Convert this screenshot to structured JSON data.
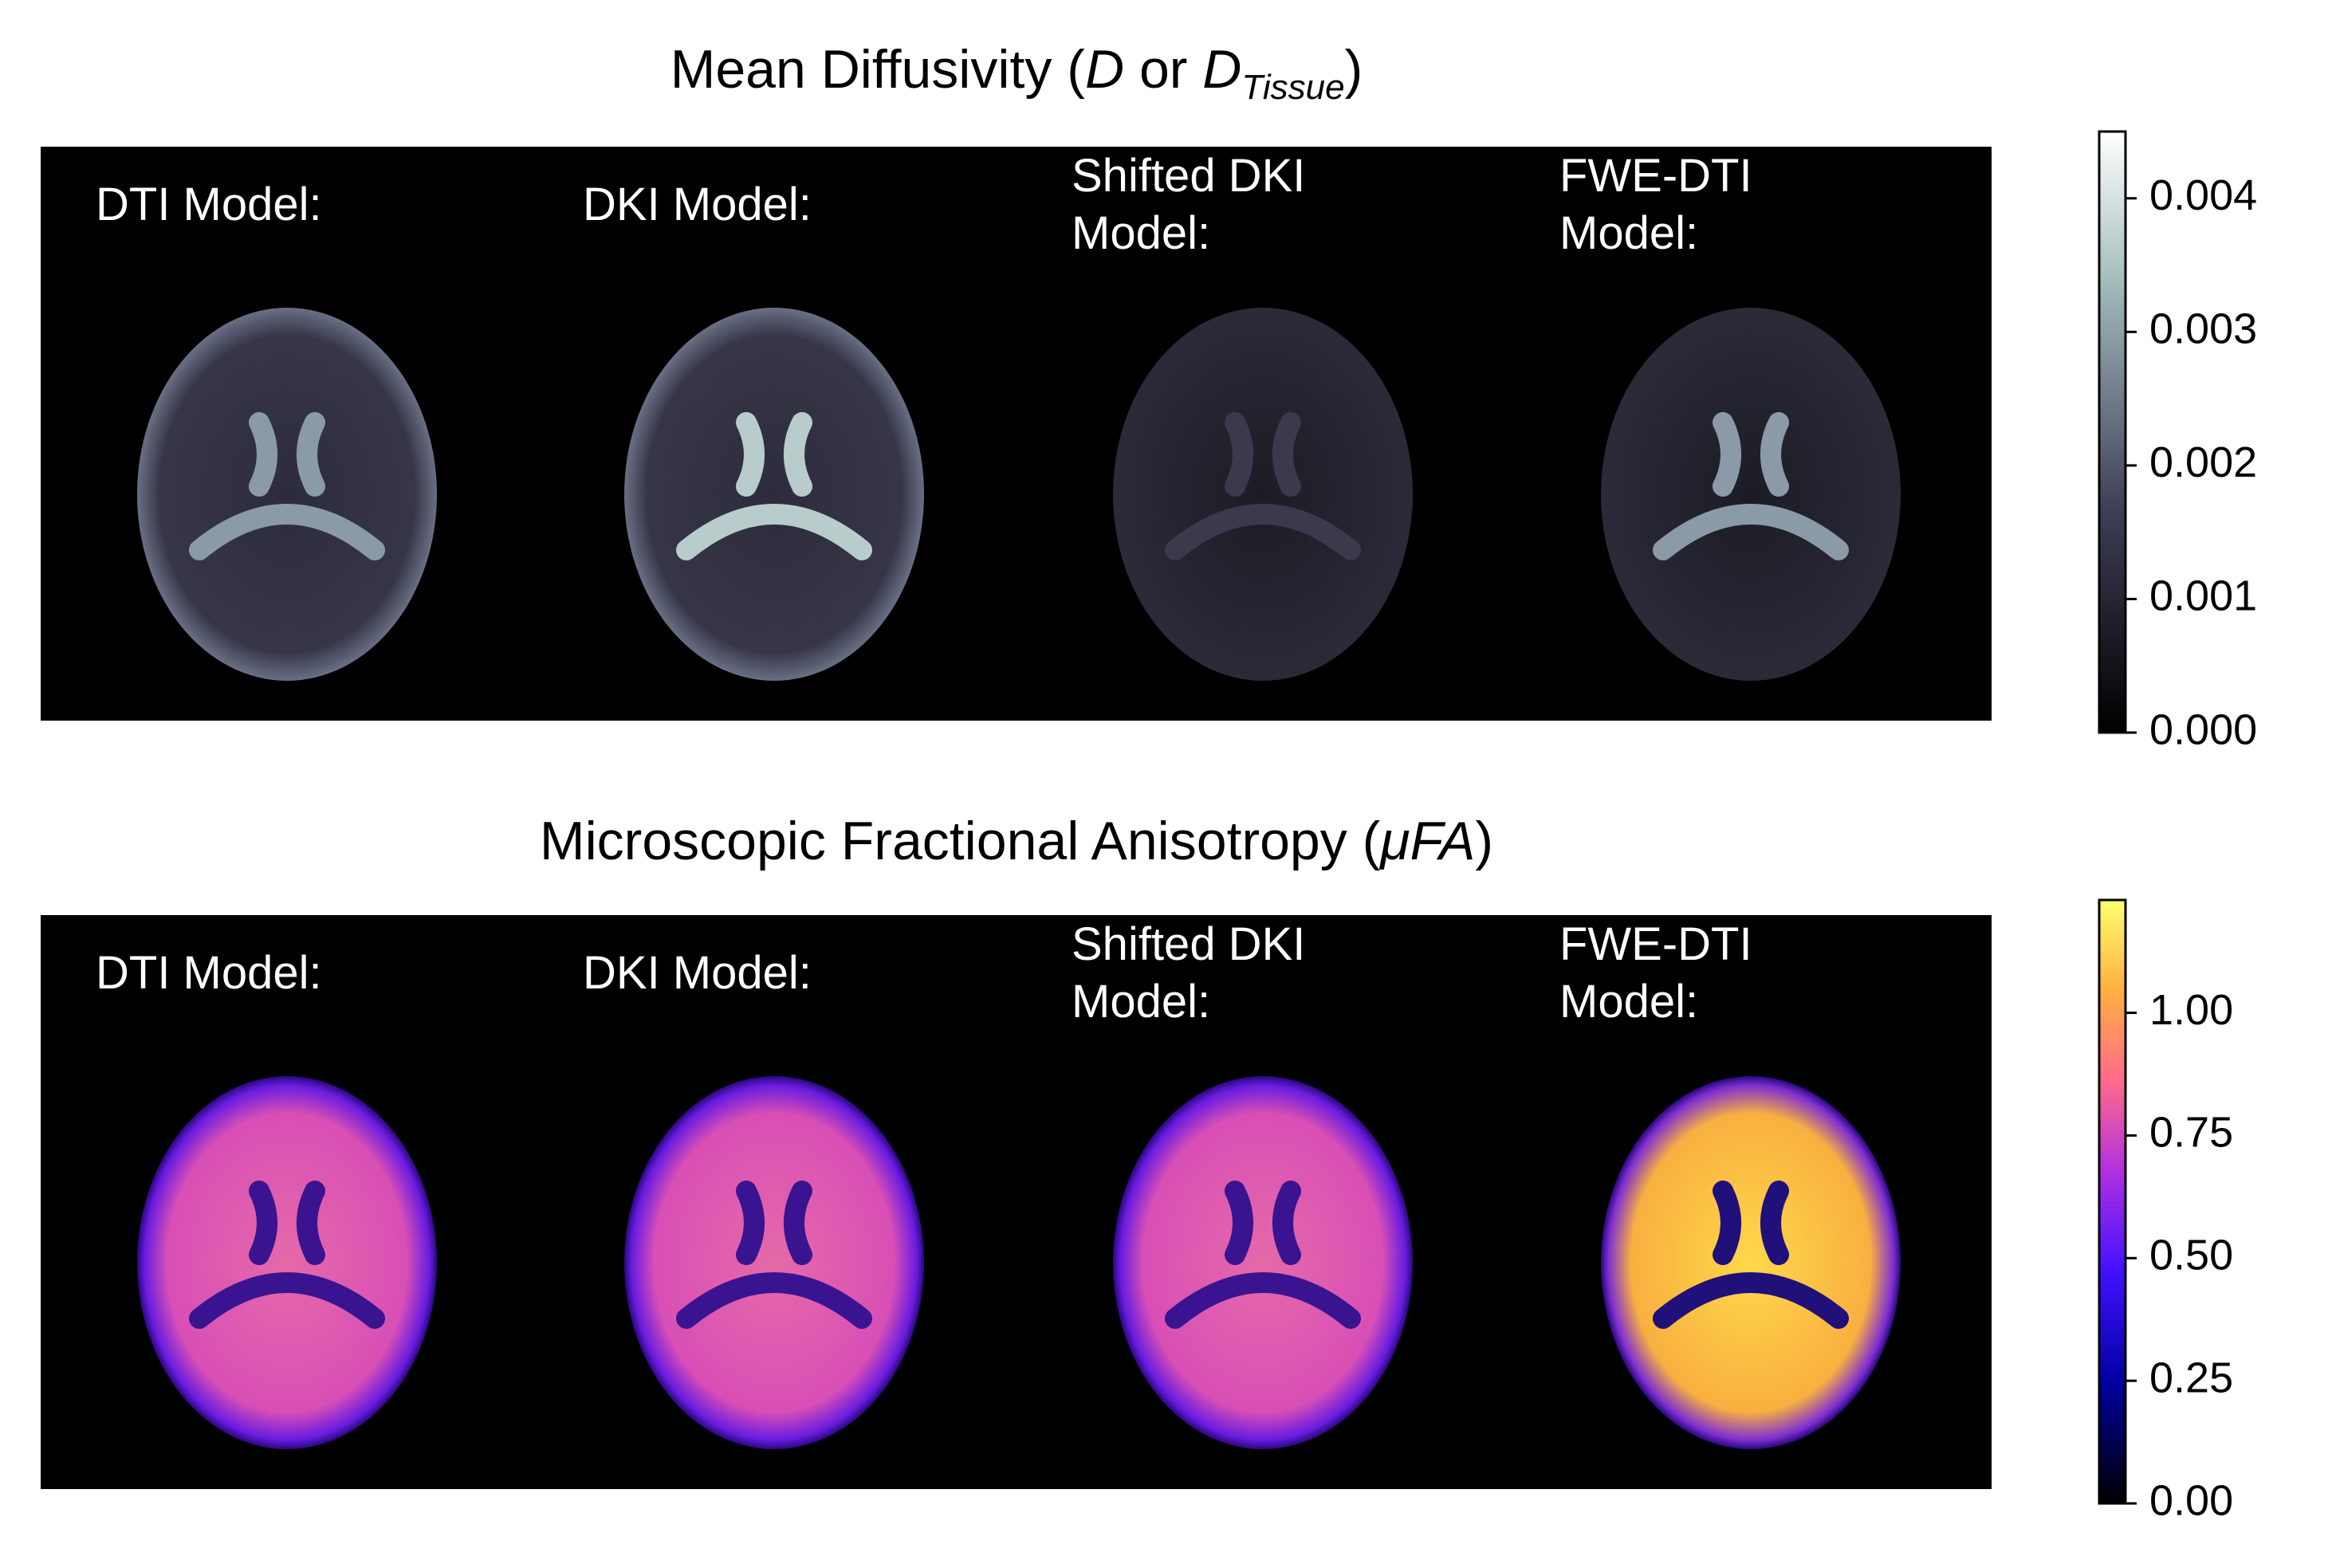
{
  "panels": [
    {
      "title": [
        "Mean Diffusivity (",
        "D",
        " or ",
        "D",
        "Tissue",
        ")"
      ],
      "labels": [
        [
          "DTI Model:"
        ],
        [
          "DKI Model:"
        ],
        [
          "Shifted DKI",
          "Model:"
        ],
        [
          "FWE-DTI",
          "Model:"
        ]
      ],
      "colorbar": {
        "lim": [
          0,
          0.0045
        ],
        "ticks": [
          {
            "value": 0,
            "label": "0.000"
          },
          0.001,
          0.002,
          0.003,
          0.004
        ]
      }
    },
    {
      "title": [
        "Microscopic Fractional Anisotropy (",
        "μFA",
        ")"
      ],
      "labels": [
        [
          "DTI Model:"
        ],
        [
          "DKI Model:"
        ],
        [
          "Shifted DKI",
          "Model:"
        ],
        [
          "FWE-DTI",
          "Model:"
        ]
      ],
      "colorbar": {
        "lim": [
          0,
          1.23
        ],
        "ticks": [
          {
            "value": 0,
            "label": "0.00"
          },
          0.25,
          {
            "value": 0.5,
            "label": "0.50"
          },
          0.75,
          {
            "value": 1,
            "label": "1.00"
          }
        ]
      }
    }
  ]
}
